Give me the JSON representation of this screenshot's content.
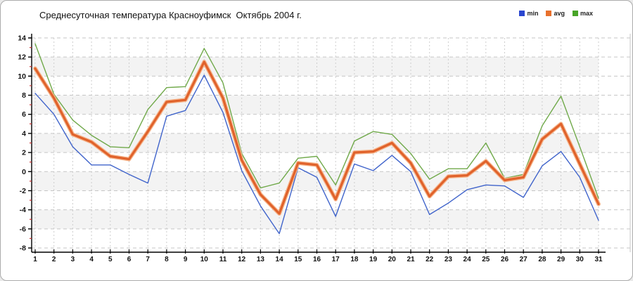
{
  "window": {
    "background": "#ffffff",
    "border_color": "#ababab"
  },
  "chart_data": {
    "type": "line",
    "title": "Среднесуточная температура Красноуфимск  Октябрь 2004 г.",
    "xlabel": "",
    "ylabel": "",
    "x": [
      1,
      2,
      3,
      4,
      5,
      6,
      7,
      8,
      9,
      10,
      11,
      12,
      13,
      14,
      15,
      16,
      17,
      18,
      19,
      20,
      21,
      22,
      23,
      24,
      25,
      26,
      27,
      28,
      29,
      30,
      31
    ],
    "ylim": [
      -8,
      14
    ],
    "ytick_step": 2,
    "grid": "dashed",
    "band_color": "#f3f3f3",
    "gridline_color": "#c6c6c6",
    "axis_color": "#000000",
    "minor_tick_color": "#cc3333",
    "legend_position": "top-right",
    "series": [
      {
        "name": "min",
        "color": "#4064cb",
        "legend_color": "#2a46cf",
        "width": 1.4,
        "values": [
          8.2,
          6.0,
          2.6,
          0.7,
          0.7,
          -0.3,
          -1.2,
          5.8,
          6.4,
          10.1,
          6.2,
          0.1,
          -3.6,
          -6.5,
          0.4,
          -0.6,
          -4.7,
          0.8,
          0.1,
          1.7,
          0.0,
          -4.5,
          -3.3,
          -1.9,
          -1.4,
          -1.5,
          -2.7,
          0.6,
          2.1,
          -0.6,
          -5.1
        ]
      },
      {
        "name": "avg",
        "color": "#e0622b",
        "legend_color": "#e8702c",
        "halo_color": "#f6b68d",
        "width": 3.2,
        "values": [
          10.8,
          7.7,
          3.9,
          3.1,
          1.6,
          1.3,
          4.2,
          7.3,
          7.5,
          11.5,
          7.7,
          1.2,
          -2.4,
          -4.4,
          0.9,
          0.7,
          -2.9,
          2.0,
          2.1,
          3.0,
          0.9,
          -2.6,
          -0.5,
          -0.4,
          1.1,
          -0.9,
          -0.6,
          3.4,
          5.0,
          0.8,
          -3.4
        ]
      },
      {
        "name": "max",
        "color": "#70a94a",
        "legend_color": "#48a427",
        "width": 1.4,
        "values": [
          13.4,
          8.1,
          5.4,
          3.8,
          2.6,
          2.5,
          6.5,
          8.8,
          8.9,
          12.9,
          9.3,
          1.9,
          -1.7,
          -1.2,
          1.4,
          1.6,
          -1.4,
          3.2,
          4.2,
          3.9,
          1.9,
          -0.8,
          0.3,
          0.3,
          3.0,
          -0.7,
          -0.3,
          4.8,
          7.9,
          2.6,
          -2.8
        ]
      }
    ]
  }
}
